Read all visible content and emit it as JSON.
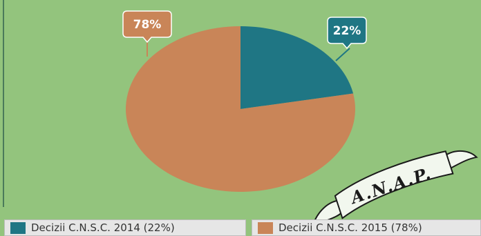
{
  "colors": {
    "background": "#93c47d",
    "series_2014": "#1f7684",
    "series_2015": "#c98558",
    "border_line": "#4a7a5a",
    "banner_fill": "#f2f7ee",
    "banner_stroke": "#1a1a1a",
    "label_text": "#ffffff"
  },
  "banner": {
    "text": "A.N.A.P."
  },
  "chart_data": {
    "type": "pie",
    "start_angle_deg": 0,
    "direction": "clockwise",
    "slices": [
      {
        "label": "Decizii C.N.S.C. 2014 (22%)",
        "value": 22,
        "display": "22%",
        "color": "#1f7684"
      },
      {
        "label": "Decizii C.N.S.C. 2015 (78%)",
        "value": 78,
        "display": "78%",
        "color": "#c98558"
      }
    ],
    "legend_position": "bottom"
  }
}
